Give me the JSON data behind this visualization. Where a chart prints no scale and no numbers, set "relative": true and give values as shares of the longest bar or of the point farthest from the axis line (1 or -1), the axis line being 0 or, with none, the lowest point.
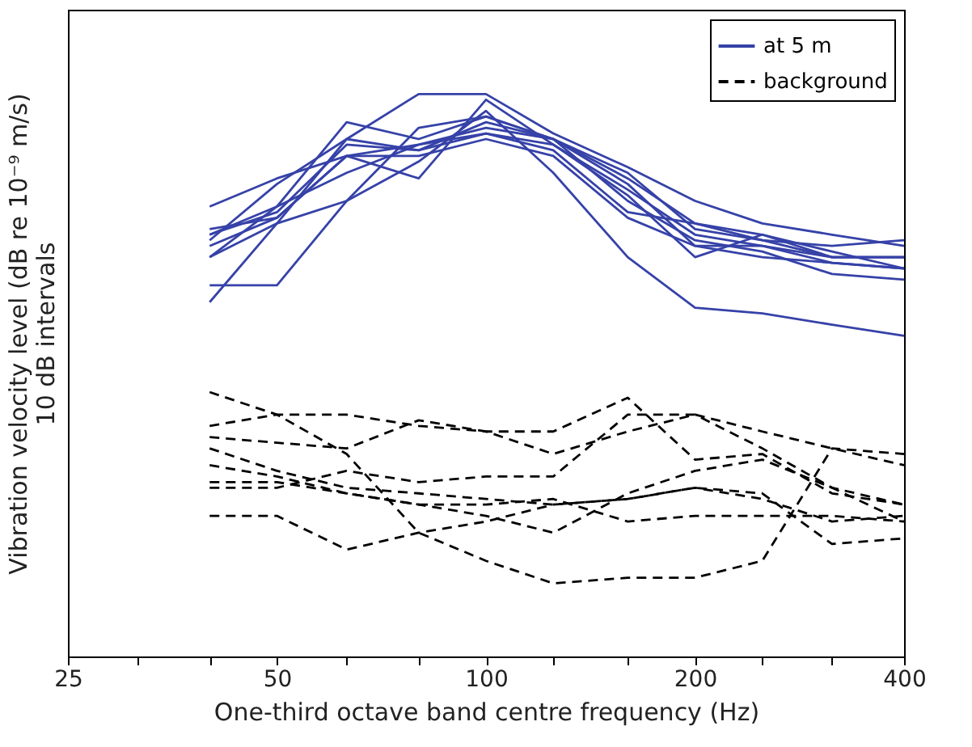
{
  "chart_data": {
    "type": "line",
    "relative": true,
    "xlabel": "One-third octave band centre frequency (Hz)",
    "ylabel": "Vibration velocity level (dB re 10⁻⁹ m/s)",
    "annotations": [
      "10 dB intervals"
    ],
    "log": "x",
    "xlim": [
      25,
      400
    ],
    "xticks": [
      25,
      {
        "value": 31.5,
        "label": null
      },
      {
        "value": 40,
        "label": null
      },
      50,
      {
        "value": 63,
        "label": null
      },
      {
        "value": 80,
        "label": null
      },
      100,
      {
        "value": 125,
        "label": null
      },
      {
        "value": 160,
        "label": null
      },
      200,
      {
        "value": 250,
        "label": null
      },
      {
        "value": 315,
        "label": null
      },
      400
    ],
    "x": [
      40,
      50,
      63,
      80,
      100,
      125,
      160,
      200,
      250,
      315,
      400
    ],
    "grid": false,
    "legend": "top right",
    "marker": "none",
    "series": [
      {
        "name": "at 5 m",
        "color": "#3642a8",
        "line_style": "solid",
        "values": [
          0.74,
          0.84,
          0.92,
          1.0,
          1.0,
          0.93,
          0.87,
          0.81,
          0.77,
          0.75,
          0.73
        ]
      },
      {
        "color": "#3642a8",
        "line_style": "solid",
        "values": [
          0.66,
          0.66,
          0.81,
          0.88,
          0.97,
          0.86,
          0.71,
          0.62,
          0.61,
          0.59,
          0.57
        ]
      },
      {
        "color": "#3642a8",
        "line_style": "solid",
        "values": [
          0.63,
          0.77,
          0.92,
          0.9,
          0.95,
          0.92,
          0.85,
          0.77,
          0.75,
          0.71,
          0.71
        ]
      },
      {
        "color": "#3642a8",
        "line_style": "solid",
        "values": [
          0.8,
          0.85,
          0.89,
          0.91,
          0.94,
          0.92,
          0.86,
          0.76,
          0.74,
          0.73,
          0.74
        ]
      },
      {
        "color": "#3642a8",
        "line_style": "solid",
        "values": [
          0.75,
          0.8,
          0.95,
          0.92,
          0.96,
          0.92,
          0.84,
          0.73,
          0.73,
          0.71,
          0.71
        ]
      },
      {
        "color": "#3642a8",
        "line_style": "solid",
        "values": [
          0.73,
          0.78,
          0.89,
          0.85,
          0.99,
          0.91,
          0.82,
          0.71,
          0.75,
          0.72,
          0.69
        ]
      },
      {
        "color": "#3642a8",
        "line_style": "solid",
        "values": [
          0.71,
          0.8,
          0.86,
          0.91,
          0.93,
          0.91,
          0.83,
          0.75,
          0.73,
          0.7,
          0.69
        ]
      },
      {
        "color": "#3642a8",
        "line_style": "solid",
        "values": [
          0.71,
          0.77,
          0.81,
          0.94,
          0.96,
          0.92,
          0.81,
          0.74,
          0.72,
          0.68,
          0.67
        ]
      },
      {
        "color": "#3642a8",
        "line_style": "solid",
        "values": [
          0.75,
          0.79,
          0.91,
          0.9,
          0.93,
          0.9,
          0.79,
          0.77,
          0.74,
          0.71,
          0.71
        ]
      },
      {
        "color": "#3642a8",
        "line_style": "solid",
        "values": [
          0.76,
          0.78,
          0.89,
          0.89,
          0.92,
          0.89,
          0.78,
          0.73,
          0.71,
          0.7,
          0.69
        ]
      },
      {
        "name": "background",
        "color": "#000000",
        "line_style": "dashed",
        "values": [
          0.47,
          0.43,
          0.36,
          0.22,
          0.17,
          0.13,
          0.14,
          0.14,
          0.17,
          0.37,
          0.36
        ]
      },
      {
        "color": "#000000",
        "line_style": "dashed",
        "values": [
          0.41,
          0.43,
          0.43,
          0.41,
          0.4,
          0.4,
          0.46,
          0.35,
          0.36,
          0.29,
          0.27
        ]
      },
      {
        "color": "#000000",
        "line_style": "dashed",
        "values": [
          0.39,
          0.38,
          0.37,
          0.42,
          0.4,
          0.36,
          0.4,
          0.43,
          0.4,
          0.37,
          0.34
        ]
      },
      {
        "color": "#000000",
        "line_style": "dashed",
        "values": [
          0.37,
          0.33,
          0.3,
          0.29,
          0.28,
          0.27,
          0.28,
          0.3,
          0.28,
          0.24,
          0.25
        ]
      },
      {
        "color": "#000000",
        "line_style": "dashed",
        "values": [
          0.3,
          0.3,
          0.33,
          0.31,
          0.32,
          0.32,
          0.43,
          0.43,
          0.37,
          0.3,
          0.27
        ]
      },
      {
        "color": "#000000",
        "line_style": "dashed",
        "values": [
          0.25,
          0.25,
          0.19,
          0.22,
          0.24,
          0.27,
          0.28,
          0.3,
          0.29,
          0.2,
          0.21
        ]
      },
      {
        "color": "#000000",
        "line_style": "dashed",
        "values": [
          0.34,
          0.32,
          0.29,
          0.27,
          0.25,
          0.22,
          0.29,
          0.33,
          0.35,
          0.3,
          0.24
        ]
      },
      {
        "color": "#000000",
        "line_style": "dashed",
        "values": [
          0.31,
          0.31,
          0.29,
          0.27,
          0.27,
          0.28,
          0.24,
          0.25,
          0.25,
          0.25,
          0.24
        ]
      }
    ]
  }
}
